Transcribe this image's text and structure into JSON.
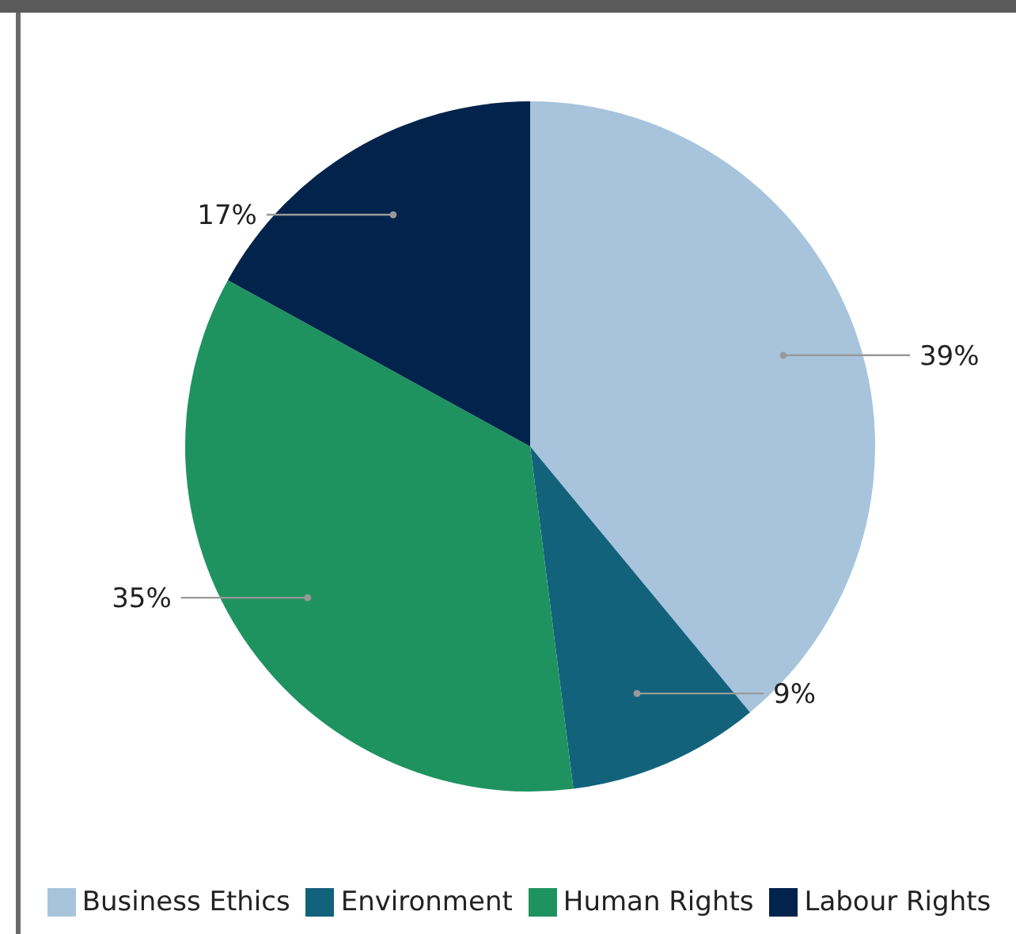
{
  "chart_data": {
    "type": "pie",
    "categories": [
      "Business Ethics",
      "Environment",
      "Human Rights",
      "Labour Rights"
    ],
    "values": [
      39,
      9,
      35,
      17
    ],
    "colors": [
      "#a7c4dc",
      "#13627c",
      "#1e9360",
      "#02234b"
    ],
    "value_labels": [
      "39%",
      "9%",
      "35%",
      "17%"
    ],
    "legend": "bottom"
  }
}
